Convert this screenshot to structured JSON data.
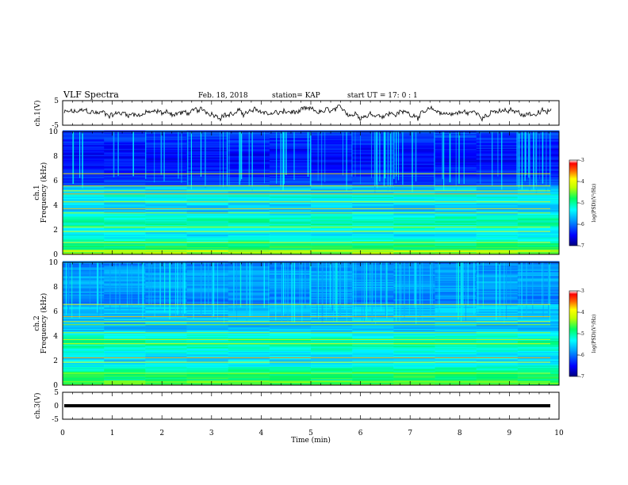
{
  "header": {
    "title": "VLF Spectra",
    "date": "Feb. 18, 2018",
    "station": "station= KAP",
    "start": "start  UT =   17: 0  : 1"
  },
  "chart_data": [
    {
      "type": "line",
      "panel": "ch1-waveform",
      "ylabel": "ch.1(V)",
      "ylim": [
        -5,
        5
      ],
      "yticks": [
        "5",
        "-5"
      ],
      "xlim": [
        0,
        10
      ],
      "description_values": "noisy waveform fluctuating roughly between -3 and 3 V"
    },
    {
      "type": "heatmap",
      "panel": "ch1-spectrogram",
      "ylabel_top": "ch.1",
      "ylabel": "Frequency (kHz)",
      "ylim": [
        0,
        10
      ],
      "yticks": [
        "0",
        "2",
        "4",
        "6",
        "8",
        "10"
      ],
      "xlim": [
        0,
        10
      ],
      "colorbar": {
        "label": "log(PSD)(V²/Hz)",
        "range": [
          -7,
          -3
        ],
        "ticks": [
          "-3",
          "-4",
          "-5",
          "-6",
          "-7"
        ]
      }
    },
    {
      "type": "heatmap",
      "panel": "ch2-spectrogram",
      "ylabel_top": "ch.2",
      "ylabel": "Frequency (kHz)",
      "ylim": [
        0,
        10
      ],
      "yticks": [
        "0",
        "2",
        "4",
        "6",
        "8",
        "10"
      ],
      "xlim": [
        0,
        10
      ],
      "colorbar": {
        "label": "log(PSD)(V²/Hz)",
        "range": [
          -7,
          -3
        ],
        "ticks": [
          "-3",
          "-4",
          "-5",
          "-6",
          "-7"
        ]
      }
    },
    {
      "type": "line",
      "panel": "ch3-waveform",
      "ylabel": "ch.3(V)",
      "ylim": [
        -5,
        5
      ],
      "yticks": [
        "5",
        "0",
        "-5"
      ],
      "xlim": [
        0,
        10
      ],
      "constant_value": 0
    }
  ],
  "xaxis": {
    "label": "Time (min)",
    "ticks": [
      "0",
      "1",
      "2",
      "3",
      "4",
      "5",
      "6",
      "7",
      "8",
      "9",
      "10"
    ]
  },
  "colors": {
    "cmap": [
      "#000080",
      "#0000ff",
      "#0080ff",
      "#00ffff",
      "#00ff80",
      "#80ff00",
      "#ffff00",
      "#ff8000",
      "#ff0000",
      "#ffffff"
    ]
  }
}
